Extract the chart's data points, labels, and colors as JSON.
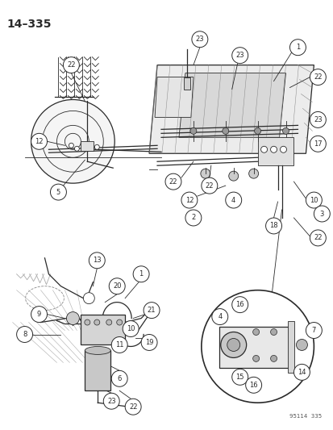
{
  "title": "14–335",
  "watermark": "95114  335",
  "bg_color": "#ffffff",
  "fig_width": 4.14,
  "fig_height": 5.33,
  "dpi": 100,
  "line_color": "#2a2a2a",
  "callout_font": 5.5,
  "callout_r": 0.021
}
